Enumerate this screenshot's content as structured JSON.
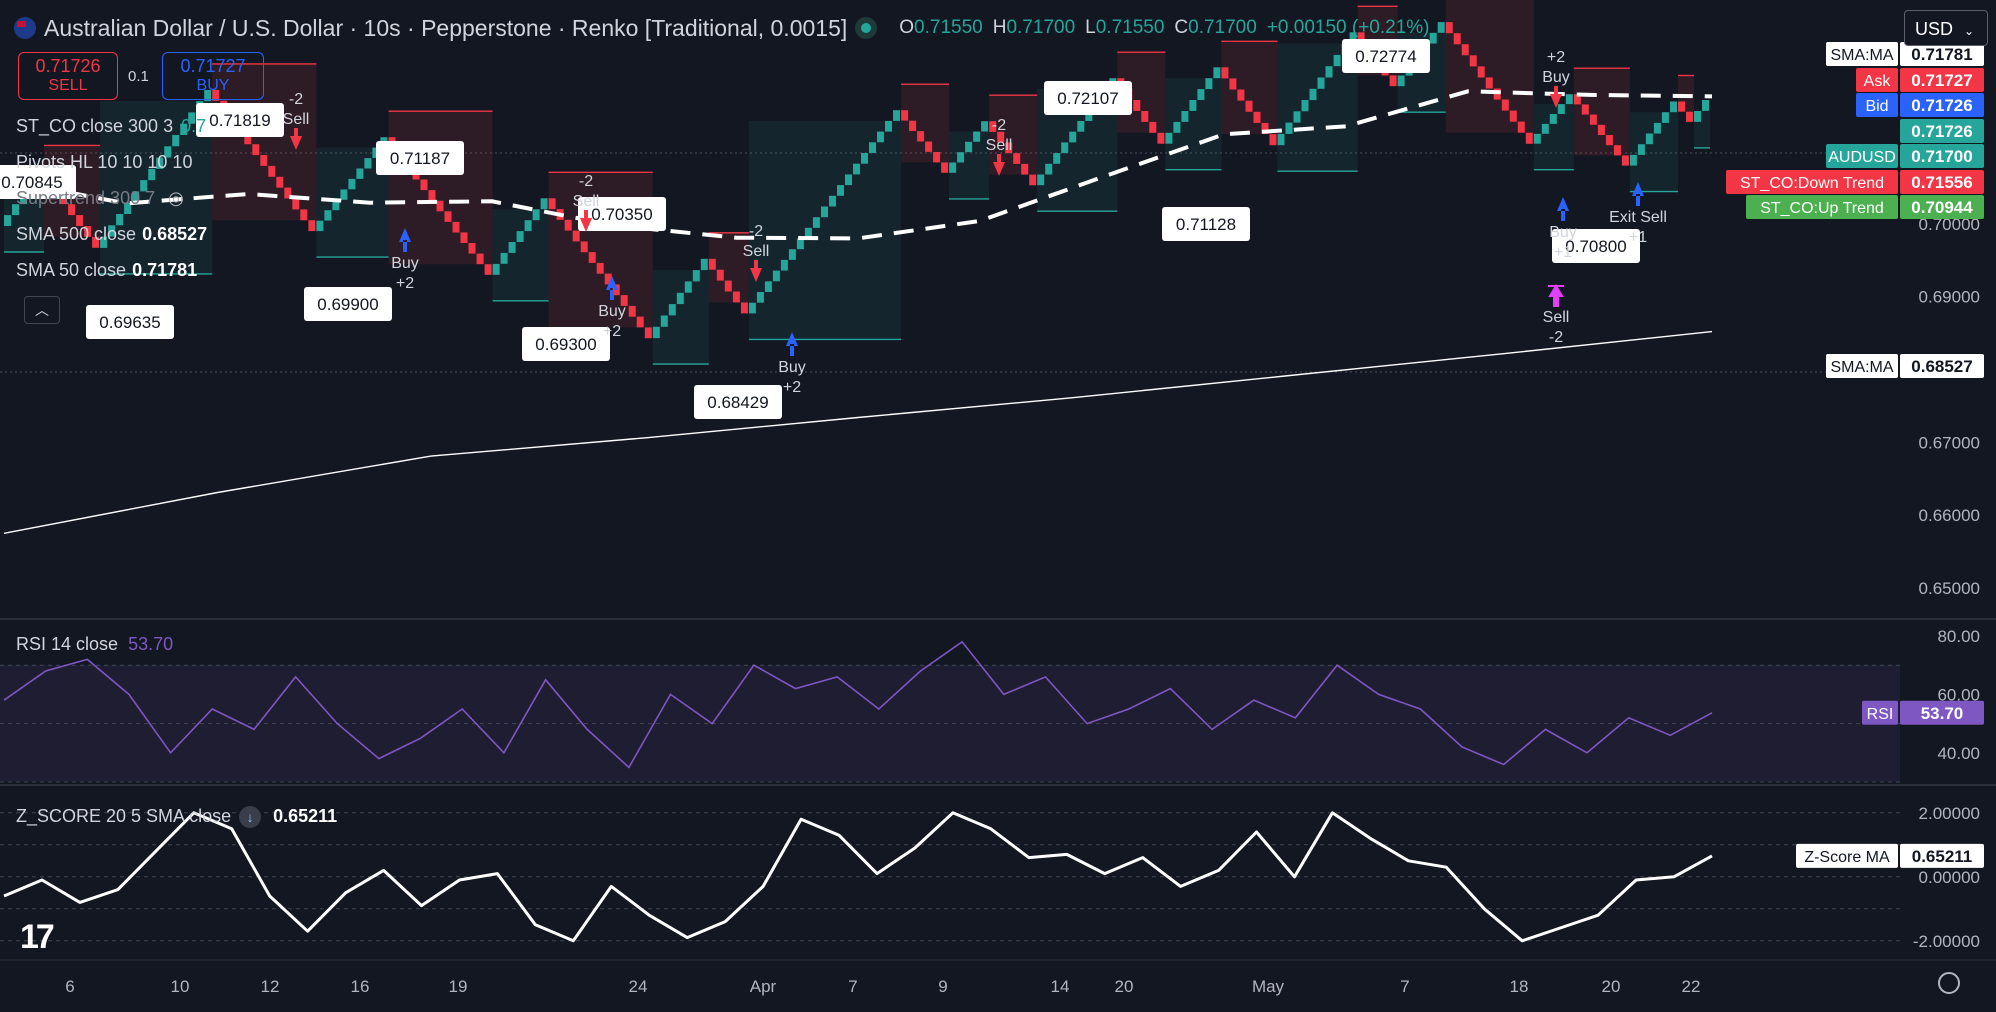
{
  "header": {
    "title": "Australian Dollar / U.S. Dollar · 10s · Pepperstone · Renko [Traditional, 0.0015]",
    "ohlc": [
      {
        "label": "O",
        "value": "0.71550"
      },
      {
        "label": "H",
        "value": "0.71700"
      },
      {
        "label": "L",
        "value": "0.71550"
      },
      {
        "label": "C",
        "value": "0.71700"
      }
    ],
    "change": "+0.00150 (+0.21%)",
    "currency": "USD"
  },
  "trade": {
    "sell_price": "0.71726",
    "sell_label": "SELL",
    "qty": "0.1",
    "buy_price": "0.71727",
    "buy_label": "BUY"
  },
  "indicators": {
    "st_co": {
      "name": "ST_CO close 300 3",
      "value": "0.7"
    },
    "pivots": {
      "name": "Pivots HL 10 10 10 10"
    },
    "supertrend": {
      "name": "Supertrend 300 7"
    },
    "sma500": {
      "name": "SMA 500 close",
      "value": "0.68527"
    },
    "sma50": {
      "name": "SMA 50 close",
      "value": "0.71781"
    },
    "rsi": {
      "name": "RSI 14 close",
      "value": "53.70"
    },
    "zscore": {
      "name": "Z_SCORE 20 5 SMA close",
      "value": "0.65211"
    }
  },
  "colors": {
    "background": "#131722",
    "up": "#26a69a",
    "down": "#f23645",
    "buy_arrow": "#2962ff",
    "sell_arrow": "#f23645",
    "exit_arrow": "#e040fb",
    "rsi": "#7e57c2",
    "ask": "#f23645",
    "bid": "#2962ff"
  },
  "chart_data": [
    {
      "type": "line",
      "title": "Australian Dollar / U.S. Dollar · 10s · Pepperstone · Renko [Traditional, 0.0015]",
      "brick_size": 0.0015,
      "x_tick_labels": [
        "6",
        "10",
        "12",
        "16",
        "19",
        "24",
        "Apr",
        "7",
        "9",
        "14",
        "20",
        "May",
        "7",
        "18",
        "20",
        "22"
      ],
      "y_tick_labels": [
        "0.65000",
        "0.66000",
        "0.67000",
        "0.68000",
        "0.69000",
        "0.70000"
      ],
      "ylim": [
        0.646,
        0.7225
      ],
      "renko_turning_points": [
        0.6997,
        0.7072,
        0.6967,
        0.7184,
        0.699,
        0.7119,
        0.693,
        0.7035,
        0.6843,
        0.6952,
        0.6877,
        0.7156,
        0.707,
        0.7141,
        0.7053,
        0.72,
        0.711,
        0.7215,
        0.7108,
        0.7263,
        0.7189,
        0.7277,
        0.711,
        0.7178,
        0.708,
        0.7168,
        0.714,
        0.717
      ],
      "series": [
        {
          "name": "SMA 50 close",
          "values": [
            0.706,
            0.7028,
            0.7041,
            0.7029,
            0.7031,
            0.6998,
            0.6981,
            0.698,
            0.7004,
            0.7064,
            0.7123,
            0.7134,
            0.7182,
            0.7177,
            0.7175
          ]
        },
        {
          "name": "SMA 500 close",
          "values": [
            0.6575,
            0.6631,
            0.6681,
            0.6706,
            0.6734,
            0.6761,
            0.6791,
            0.6821,
            0.6852
          ]
        }
      ],
      "pivot_labels": [
        "0.70845",
        "0.71819",
        "0.69635",
        "0.69900",
        "0.71187",
        "0.69300",
        "0.70350",
        "0.68429",
        "0.72107",
        "0.71128",
        "0.72774",
        "0.70800"
      ],
      "signal_labels": [
        {
          "text": "Sell",
          "qty": "-2"
        },
        {
          "text": "Buy",
          "qty": "+2"
        },
        {
          "text": "Sell",
          "qty": "-2"
        },
        {
          "text": "Buy",
          "qty": "+2"
        },
        {
          "text": "Sell",
          "qty": "-2"
        },
        {
          "text": "Buy",
          "qty": "+2"
        },
        {
          "text": "Sell",
          "qty": "-2"
        },
        {
          "text": "Buy",
          "qty": "+2"
        },
        {
          "text": "Sell",
          "qty": "-2"
        },
        {
          "text": "Exit Sell",
          "qty": "+1"
        },
        {
          "text": "Buy",
          "qty": "+1"
        }
      ],
      "price_tags": [
        {
          "label": "SMA:MA",
          "value": "0.71781"
        },
        {
          "label": "Ask",
          "value": "0.71727"
        },
        {
          "label": "Bid",
          "value": "0.71726"
        },
        {
          "label": "",
          "value": "0.71726"
        },
        {
          "label": "AUDUSD",
          "value": "0.71700"
        },
        {
          "label": "ST_CO:Down Trend",
          "value": "0.71556"
        },
        {
          "label": "ST_CO:Up Trend",
          "value": "0.70944"
        },
        {
          "label": "SMA:MA",
          "value": "0.68527"
        }
      ]
    },
    {
      "type": "line",
      "title": "RSI 14 close",
      "y_tick_labels": [
        "40.00",
        "60.00",
        "80.00"
      ],
      "ylim": [
        30,
        80
      ],
      "bands": [
        30,
        70
      ],
      "series": [
        {
          "name": "RSI",
          "values": [
            58,
            68,
            72,
            60,
            40,
            55,
            48,
            66,
            50,
            38,
            45,
            55,
            40,
            65,
            48,
            35,
            60,
            50,
            70,
            62,
            66,
            55,
            68,
            78,
            60,
            66,
            50,
            55,
            62,
            48,
            58,
            52,
            70,
            60,
            55,
            42,
            36,
            48,
            40,
            52,
            46,
            53.7
          ]
        }
      ],
      "tag": {
        "label": "RSI",
        "value": "53.70"
      }
    },
    {
      "type": "line",
      "title": "Z_SCORE 20 5 SMA close",
      "y_tick_labels": [
        "-2.00000",
        "0.00000",
        "2.00000"
      ],
      "ylim": [
        -2.6,
        2.4
      ],
      "series": [
        {
          "name": "Z-Score MA",
          "values": [
            -0.6,
            -0.1,
            -0.8,
            -0.4,
            0.8,
            2.0,
            1.5,
            -0.6,
            -1.7,
            -0.5,
            0.2,
            -0.9,
            -0.1,
            0.1,
            -1.5,
            -2.0,
            -0.3,
            -1.2,
            -1.9,
            -1.4,
            -0.3,
            1.8,
            1.3,
            0.1,
            0.9,
            2.0,
            1.5,
            0.6,
            0.7,
            0.1,
            0.6,
            -0.3,
            0.2,
            1.4,
            0.0,
            2.0,
            1.2,
            0.5,
            0.3,
            -1.0,
            -2.0,
            -1.6,
            -1.2,
            -0.1,
            0.0,
            0.65211
          ]
        }
      ],
      "tag": {
        "label": "Z-Score MA",
        "value": "0.65211"
      }
    }
  ]
}
